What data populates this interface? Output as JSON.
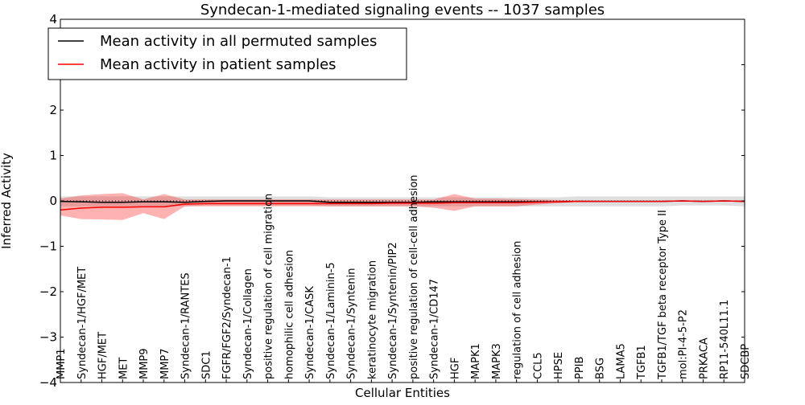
{
  "chart_data": {
    "type": "line",
    "title": "Syndecan-1-mediated signaling events -- 1037 samples",
    "xlabel": "Cellular Entities",
    "ylabel": "Inferred Activity",
    "ylim": [
      -4,
      4
    ],
    "yticks": [
      -4,
      -3,
      -2,
      -1,
      0,
      1,
      2,
      3,
      4
    ],
    "ytick_labels": [
      "−4",
      "−3",
      "−2",
      "−1",
      "0",
      "1",
      "2",
      "3",
      "4"
    ],
    "legend_position": "top-left",
    "categories": [
      "MMP1",
      "Syndecan-1/HGF/MET",
      "HGF/MET",
      "MET",
      "MMP9",
      "MMP7",
      "Syndecan-1/RANTES",
      "SDC1",
      "FGFR/FGF2/Syndecan-1",
      "Syndecan-1/Collagen",
      "positive regulation of cell migration",
      "homophilic cell adhesion",
      "Syndecan-1/CASK",
      "Syndecan-1/Laminin-5",
      "Syndecan-1/Syntenin",
      "keratinocyte migration",
      "Syndecan-1/Syntenin/PIP2",
      "positive regulation of cell-cell adhesion",
      "Syndecan-1/CD147",
      "HGF",
      "MAPK1",
      "MAPK3",
      "regulation of cell adhesion",
      "CCL5",
      "HPSE",
      "PPIB",
      "BSG",
      "LAMA5",
      "TGFB1",
      "TGFB1/TGF beta receptor Type II",
      "mol:PI-4-5-P2",
      "PRKACA",
      "RP11-540L11.1",
      "SDCBP"
    ],
    "series": [
      {
        "name": "Mean activity in all permuted samples",
        "color": "#000000",
        "values": [
          -0.01,
          -0.02,
          -0.03,
          -0.03,
          -0.02,
          -0.02,
          -0.03,
          -0.01,
          0,
          0,
          0,
          0,
          0,
          -0.03,
          -0.03,
          -0.03,
          -0.03,
          -0.03,
          -0.02,
          -0.02,
          -0.02,
          -0.02,
          -0.02,
          -0.02,
          -0.02,
          -0.01,
          -0.01,
          -0.01,
          -0.01,
          -0.01,
          0,
          -0.01,
          0,
          -0.01
        ],
        "upper": [
          0.1,
          0.1,
          0.1,
          0.1,
          0.1,
          0.1,
          0.1,
          0.1,
          0.1,
          0.1,
          0.1,
          0.1,
          0.1,
          0.08,
          0.08,
          0.08,
          0.08,
          0.08,
          0.08,
          0.08,
          0.08,
          0.08,
          0.08,
          0.08,
          0.08,
          0.1,
          0.1,
          0.1,
          0.1,
          0.1,
          0.1,
          0.1,
          0.1,
          0.1
        ],
        "lower": [
          -0.12,
          -0.12,
          -0.12,
          -0.12,
          -0.12,
          -0.12,
          -0.12,
          -0.1,
          -0.1,
          -0.1,
          -0.1,
          -0.1,
          -0.1,
          -0.12,
          -0.12,
          -0.12,
          -0.12,
          -0.12,
          -0.12,
          -0.12,
          -0.12,
          -0.12,
          -0.12,
          -0.12,
          -0.12,
          -0.12,
          -0.12,
          -0.12,
          -0.12,
          -0.12,
          -0.1,
          -0.1,
          -0.1,
          -0.12
        ]
      },
      {
        "name": "Mean activity in patient samples",
        "color": "#ff0000",
        "values": [
          -0.2,
          -0.16,
          -0.14,
          -0.14,
          -0.13,
          -0.13,
          -0.07,
          -0.06,
          -0.06,
          -0.06,
          -0.06,
          -0.06,
          -0.06,
          -0.06,
          -0.06,
          -0.06,
          -0.05,
          -0.05,
          -0.05,
          -0.04,
          -0.04,
          -0.04,
          -0.04,
          -0.03,
          -0.02,
          -0.01,
          -0.01,
          -0.01,
          -0.01,
          -0.01,
          0,
          -0.01,
          0,
          -0.01
        ],
        "upper": [
          0.05,
          0.12,
          0.15,
          0.17,
          0.03,
          0.15,
          0.03,
          0.03,
          0.03,
          0.03,
          0.03,
          0.03,
          0.03,
          0.03,
          0.03,
          0.03,
          0.03,
          0.03,
          0.03,
          0.15,
          0.05,
          0.05,
          0.04,
          0.03,
          0.02,
          0.01,
          0,
          0,
          0,
          0,
          0,
          0,
          0,
          0
        ],
        "lower": [
          -0.32,
          -0.4,
          -0.41,
          -0.42,
          -0.27,
          -0.4,
          -0.12,
          -0.12,
          -0.12,
          -0.12,
          -0.12,
          -0.12,
          -0.12,
          -0.12,
          -0.12,
          -0.12,
          -0.12,
          -0.12,
          -0.15,
          -0.22,
          -0.12,
          -0.12,
          -0.12,
          -0.08,
          -0.05,
          -0.02,
          -0.02,
          -0.02,
          -0.02,
          -0.02,
          -0.01,
          -0.02,
          -0.01,
          -0.02
        ]
      }
    ]
  }
}
